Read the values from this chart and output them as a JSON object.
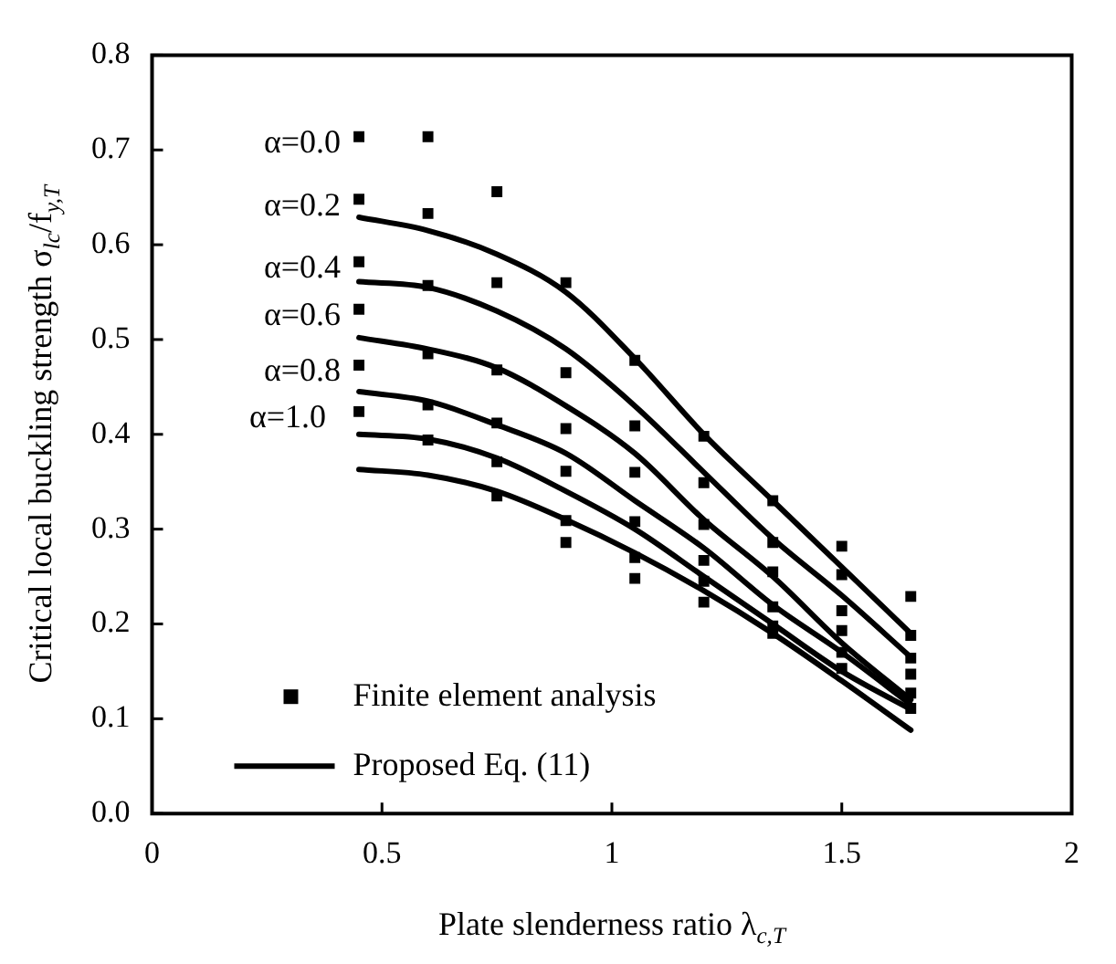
{
  "chart_data": {
    "type": "scatter",
    "xlabel": "Plate slenderness ratio λ$_{c,T}$",
    "ylabel": "Critical local buckling strength σ$_{lc}$/f$_{y,T}$",
    "xlim": [
      0,
      2
    ],
    "xticks": [
      0,
      0.5,
      1,
      1.5,
      2
    ],
    "ylim": [
      0,
      0.8
    ],
    "yticks": [
      {
        "value": 0,
        "label": "0.0"
      },
      {
        "value": 0.1,
        "label": "0.1"
      },
      {
        "value": 0.2,
        "label": "0.2"
      },
      {
        "value": 0.3,
        "label": "0.3"
      },
      {
        "value": 0.4,
        "label": "0.4"
      },
      {
        "value": 0.5,
        "label": "0.5"
      },
      {
        "value": 0.6,
        "label": "0.6"
      },
      {
        "value": 0.7,
        "label": "0.7"
      },
      {
        "value": 0.8,
        "label": "0.8"
      }
    ],
    "grid": false,
    "legend": "bottom left",
    "annotations": [
      "α=0.0",
      "α=0.2",
      "α=0.4",
      "α=0.6",
      "α=0.8",
      "α=1.0"
    ],
    "series": [
      {
        "name": "Finite element analysis",
        "marker": "square",
        "color": "#000000",
        "x": [
          0.45,
          0.45,
          0.45,
          0.45,
          0.45,
          0.45,
          0.6,
          0.6,
          0.6,
          0.6,
          0.6,
          0.6,
          0.75,
          0.75,
          0.75,
          0.75,
          0.75,
          0.75,
          0.9,
          0.9,
          0.9,
          0.9,
          0.9,
          0.9,
          1.05,
          1.05,
          1.05,
          1.05,
          1.05,
          1.05,
          1.2,
          1.2,
          1.2,
          1.2,
          1.2,
          1.2,
          1.35,
          1.35,
          1.35,
          1.35,
          1.35,
          1.35,
          1.5,
          1.5,
          1.5,
          1.5,
          1.5,
          1.5,
          1.65,
          1.65,
          1.65,
          1.65,
          1.65,
          1.65
        ],
        "values": [
          0.714,
          0.648,
          0.582,
          0.532,
          0.473,
          0.424,
          0.714,
          0.633,
          0.557,
          0.485,
          0.431,
          0.394,
          0.656,
          0.56,
          0.468,
          0.412,
          0.371,
          0.335,
          0.56,
          0.465,
          0.406,
          0.361,
          0.309,
          0.286,
          0.478,
          0.409,
          0.36,
          0.308,
          0.27,
          0.248,
          0.398,
          0.349,
          0.305,
          0.267,
          0.245,
          0.223,
          0.33,
          0.286,
          0.255,
          0.218,
          0.198,
          0.19,
          0.282,
          0.252,
          0.214,
          0.193,
          0.17,
          0.153,
          0.229,
          0.188,
          0.164,
          0.147,
          0.127,
          0.111
        ]
      },
      {
        "name": "Proposed Eq. (11)",
        "type": "line",
        "marker": "none",
        "color": "#000000",
        "x": [
          0.45,
          0.6,
          0.75,
          0.9,
          1.05,
          1.2,
          1.35,
          1.5,
          1.65
        ],
        "values": [
          0.629,
          0.615,
          0.59,
          0.55,
          0.48,
          0.4,
          0.33,
          0.26,
          0.19
        ]
      },
      {
        "type": "line",
        "marker": "none",
        "color": "#000000",
        "x": [
          0.45,
          0.6,
          0.75,
          0.9,
          1.05,
          1.2,
          1.35,
          1.5,
          1.65
        ],
        "values": [
          0.561,
          0.555,
          0.53,
          0.49,
          0.43,
          0.36,
          0.29,
          0.23,
          0.165
        ]
      },
      {
        "type": "line",
        "marker": "none",
        "color": "#000000",
        "x": [
          0.45,
          0.6,
          0.75,
          0.9,
          1.05,
          1.2,
          1.35,
          1.5,
          1.65
        ],
        "values": [
          0.502,
          0.49,
          0.47,
          0.43,
          0.38,
          0.31,
          0.25,
          0.18,
          0.12
        ]
      },
      {
        "type": "line",
        "marker": "none",
        "color": "#000000",
        "x": [
          0.45,
          0.6,
          0.75,
          0.9,
          1.05,
          1.2,
          1.35,
          1.5,
          1.65
        ],
        "values": [
          0.445,
          0.435,
          0.41,
          0.38,
          0.33,
          0.28,
          0.22,
          0.17,
          0.115
        ]
      },
      {
        "type": "line",
        "marker": "none",
        "color": "#000000",
        "x": [
          0.45,
          0.6,
          0.75,
          0.9,
          1.05,
          1.2,
          1.35,
          1.5,
          1.65
        ],
        "values": [
          0.4,
          0.395,
          0.375,
          0.34,
          0.3,
          0.25,
          0.2,
          0.15,
          0.11
        ]
      },
      {
        "type": "line",
        "marker": "none",
        "color": "#000000",
        "x": [
          0.45,
          0.6,
          0.75,
          0.9,
          1.05,
          1.2,
          1.35,
          1.5,
          1.65
        ],
        "values": [
          0.363,
          0.357,
          0.34,
          0.31,
          0.275,
          0.235,
          0.19,
          0.14,
          0.088
        ]
      }
    ]
  }
}
